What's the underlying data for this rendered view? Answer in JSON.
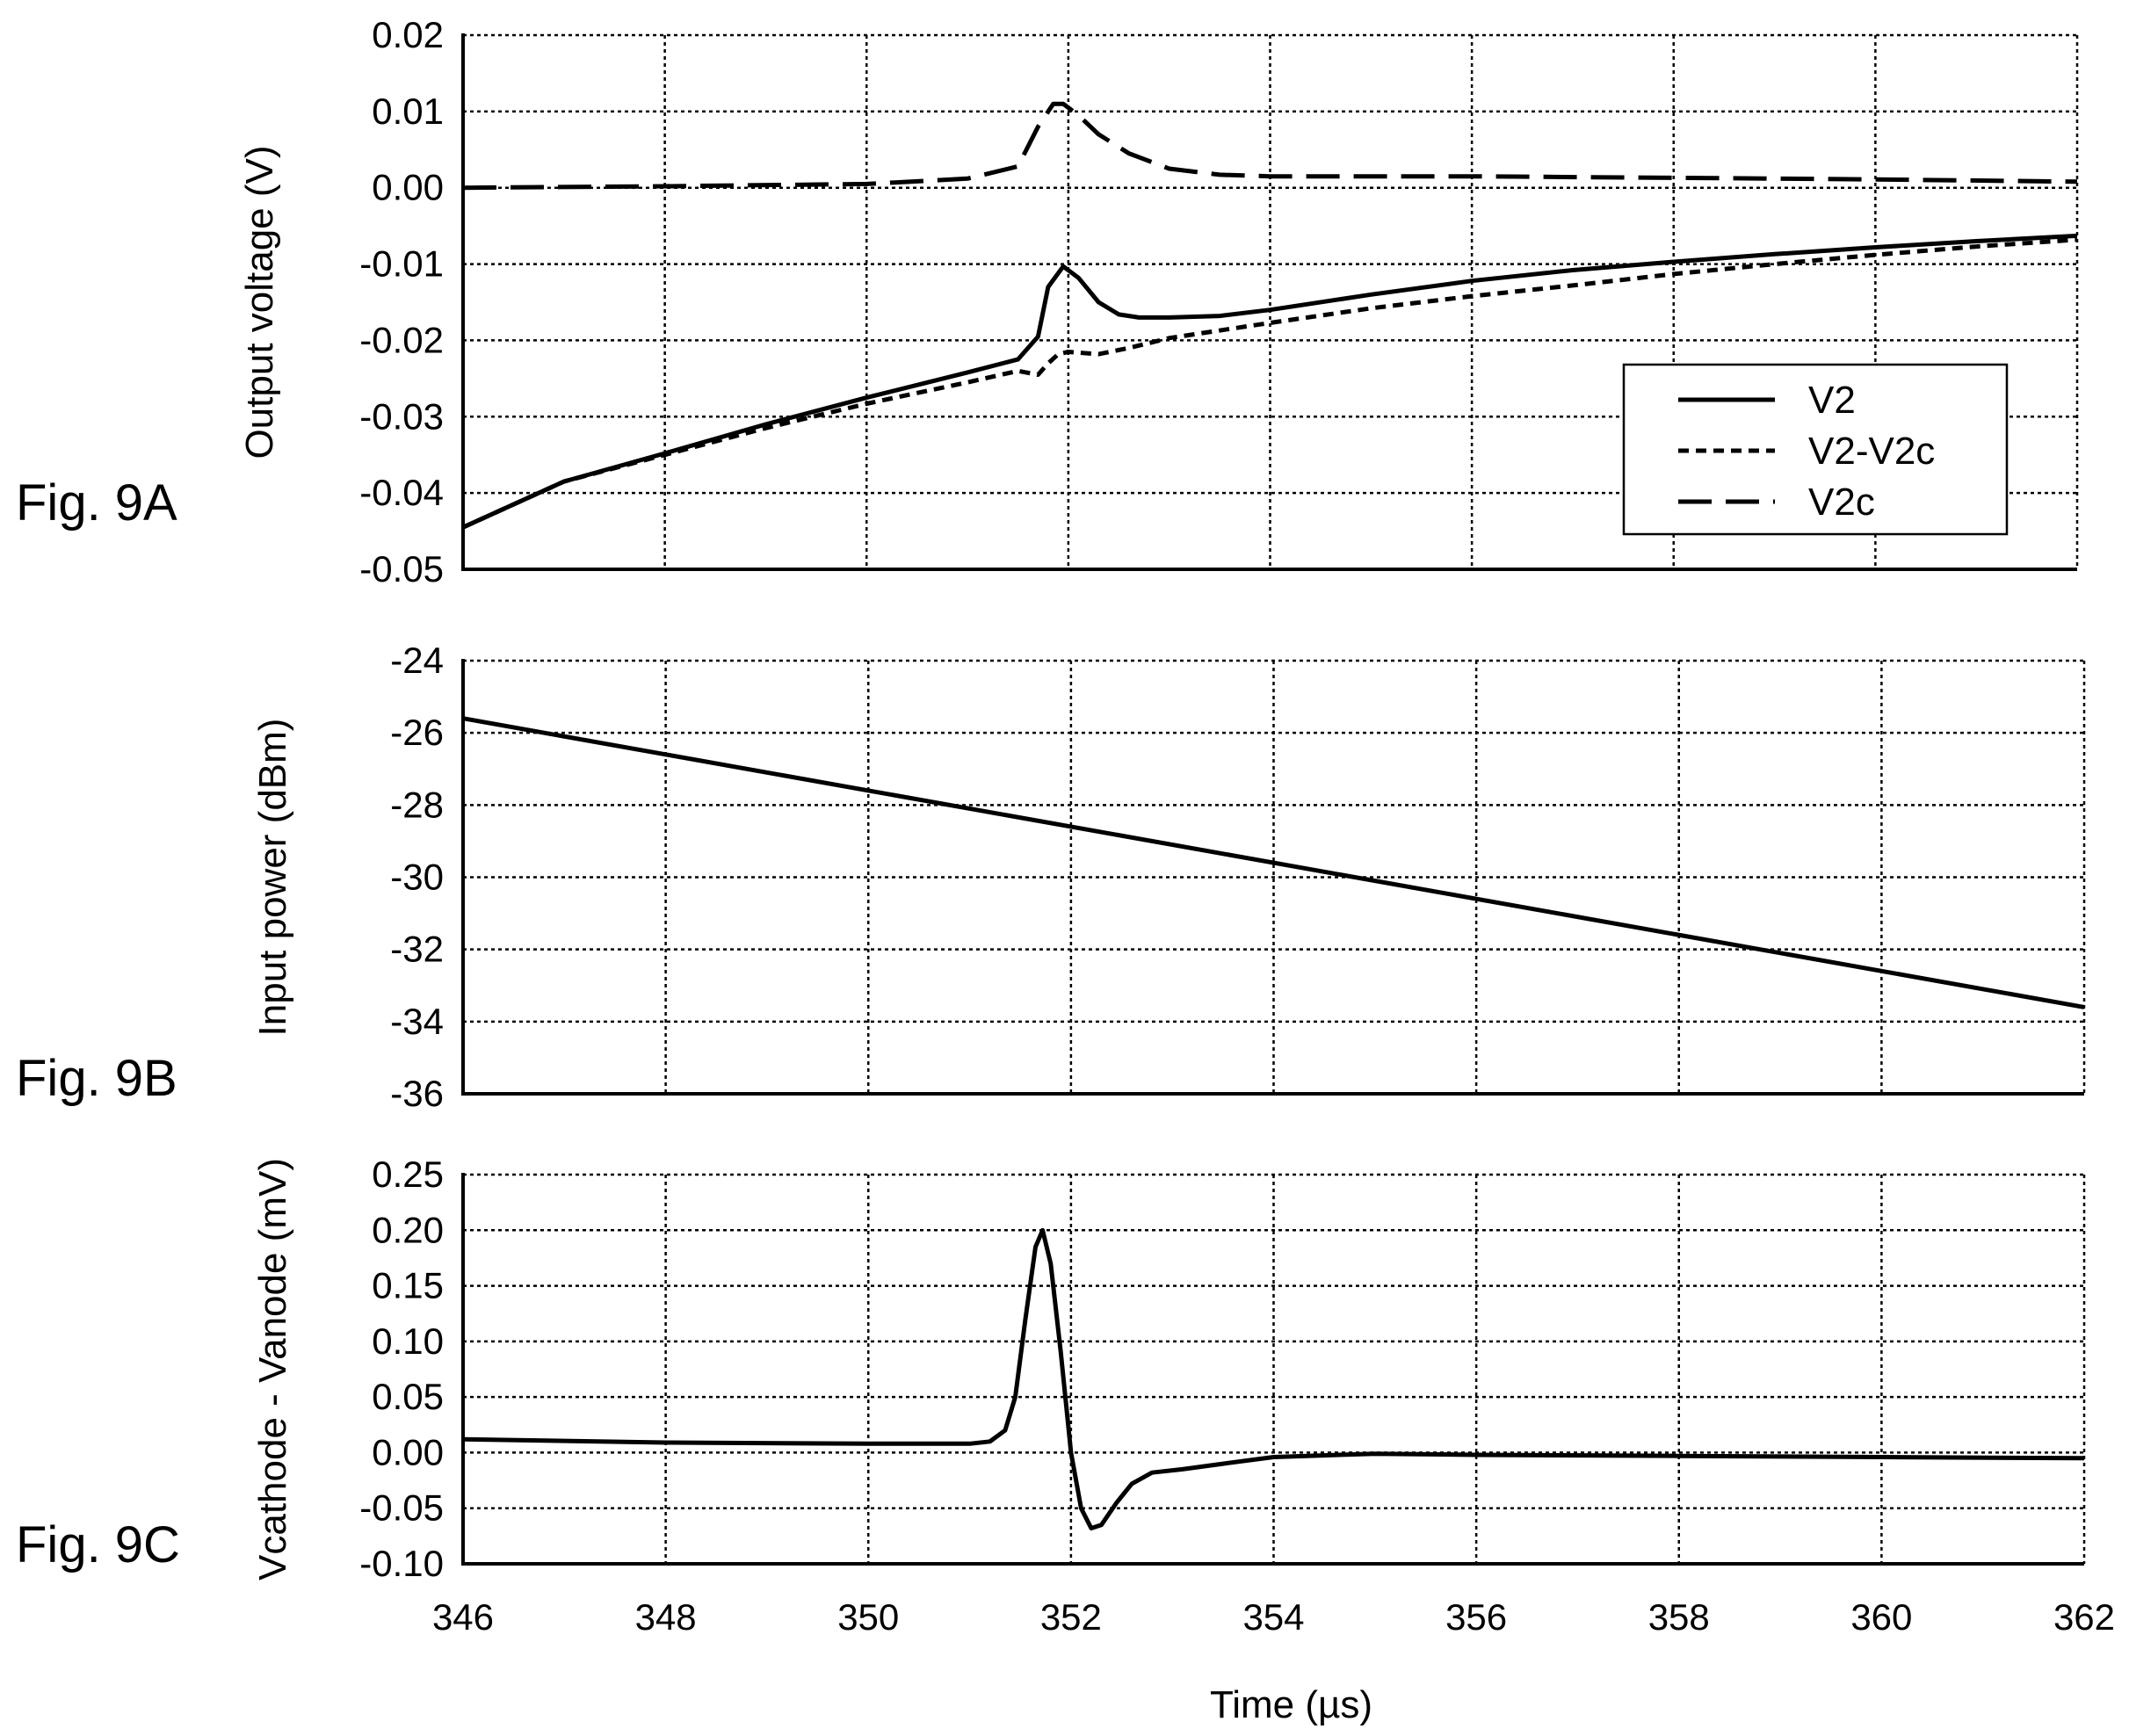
{
  "chart_data": [
    {
      "type": "line",
      "figure_label": "Fig. 9A",
      "ylabel": "Output voltage (V)",
      "xlabel": "",
      "xlim": [
        346,
        362
      ],
      "ylim": [
        -0.05,
        0.02
      ],
      "x_ticks": [
        "346",
        "348",
        "350",
        "352",
        "354",
        "356",
        "358",
        "360",
        "362"
      ],
      "y_ticks": [
        "-0.05",
        "-0.04",
        "-0.03",
        "-0.02",
        "-0.01",
        "0.00",
        "0.01",
        "0.02"
      ],
      "grid": true,
      "grid_style": "dotted",
      "legend_position": "right",
      "series": [
        {
          "name": "V2",
          "line_style": "solid",
          "x": [
            346,
            347,
            348,
            349,
            350,
            351,
            351.5,
            351.7,
            351.8,
            351.95,
            352.1,
            352.3,
            352.5,
            352.7,
            353,
            353.5,
            354,
            355,
            356,
            357,
            358,
            359,
            360,
            361,
            362
          ],
          "y": [
            -0.0445,
            -0.0385,
            -0.0348,
            -0.031,
            -0.0275,
            -0.0242,
            -0.0225,
            -0.0195,
            -0.013,
            -0.0103,
            -0.0118,
            -0.015,
            -0.0166,
            -0.017,
            -0.017,
            -0.0168,
            -0.016,
            -0.014,
            -0.0122,
            -0.0108,
            -0.0097,
            -0.0087,
            -0.0078,
            -0.007,
            -0.0063
          ]
        },
        {
          "name": "V2-V2c",
          "line_style": "dashed",
          "x": [
            346,
            347,
            348,
            349,
            350,
            351,
            351.5,
            351.7,
            351.8,
            351.9,
            352,
            352.3,
            352.6,
            353,
            354,
            355,
            356,
            357,
            358,
            359,
            360,
            361,
            362
          ],
          "y": [
            -0.0445,
            -0.0385,
            -0.035,
            -0.0315,
            -0.0283,
            -0.0255,
            -0.024,
            -0.0245,
            -0.023,
            -0.0218,
            -0.0215,
            -0.0218,
            -0.021,
            -0.0197,
            -0.0177,
            -0.0158,
            -0.0142,
            -0.0128,
            -0.0113,
            -0.01,
            -0.0088,
            -0.0077,
            -0.0068
          ]
        },
        {
          "name": "V2c",
          "line_style": "long-dashed",
          "x": [
            346,
            348,
            350,
            351,
            351.5,
            351.7,
            351.85,
            351.95,
            352.1,
            352.3,
            352.6,
            353,
            353.5,
            354,
            356,
            358,
            360,
            362
          ],
          "y": [
            0.0,
            0.0002,
            0.0005,
            0.0012,
            0.0028,
            0.008,
            0.011,
            0.011,
            0.0095,
            0.007,
            0.0045,
            0.0025,
            0.0017,
            0.0015,
            0.0015,
            0.0013,
            0.0011,
            0.0008
          ]
        }
      ]
    },
    {
      "type": "line",
      "figure_label": "Fig. 9B",
      "ylabel": "Input power (dBm)",
      "xlabel": "",
      "xlim": [
        346,
        362
      ],
      "ylim": [
        -36,
        -24
      ],
      "x_ticks": [
        "346",
        "348",
        "350",
        "352",
        "354",
        "356",
        "358",
        "360",
        "362"
      ],
      "y_ticks": [
        "-36",
        "-34",
        "-32",
        "-30",
        "-28",
        "-26",
        "-24"
      ],
      "grid": true,
      "grid_style": "dotted",
      "series": [
        {
          "line_style": "solid",
          "x": [
            346,
            362
          ],
          "y": [
            -25.6,
            -33.6
          ]
        }
      ]
    },
    {
      "type": "line",
      "figure_label": "Fig. 9C",
      "ylabel": "Vcathode - Vanode (mV)",
      "xlabel": "Time (µs)",
      "xlim": [
        346,
        362
      ],
      "ylim": [
        -0.1,
        0.25
      ],
      "x_ticks": [
        "346",
        "348",
        "350",
        "352",
        "354",
        "356",
        "358",
        "360",
        "362"
      ],
      "y_ticks": [
        "-0.10",
        "-0.05",
        "0.00",
        "0.05",
        "0.10",
        "0.15",
        "0.20",
        "0.25"
      ],
      "grid": true,
      "grid_style": "dotted",
      "series": [
        {
          "line_style": "solid",
          "x": [
            346,
            348,
            350,
            351,
            351.2,
            351.35,
            351.45,
            351.55,
            351.65,
            351.72,
            351.8,
            351.9,
            352.0,
            352.1,
            352.2,
            352.3,
            352.45,
            352.6,
            352.8,
            353.1,
            353.5,
            354,
            355,
            356,
            358,
            360,
            362
          ],
          "y": [
            0.012,
            0.009,
            0.008,
            0.008,
            0.01,
            0.02,
            0.05,
            0.12,
            0.185,
            0.2,
            0.17,
            0.09,
            0.0,
            -0.05,
            -0.068,
            -0.065,
            -0.045,
            -0.028,
            -0.018,
            -0.015,
            -0.01,
            -0.004,
            -0.001,
            -0.002,
            -0.003,
            -0.004,
            -0.005
          ]
        }
      ]
    }
  ]
}
